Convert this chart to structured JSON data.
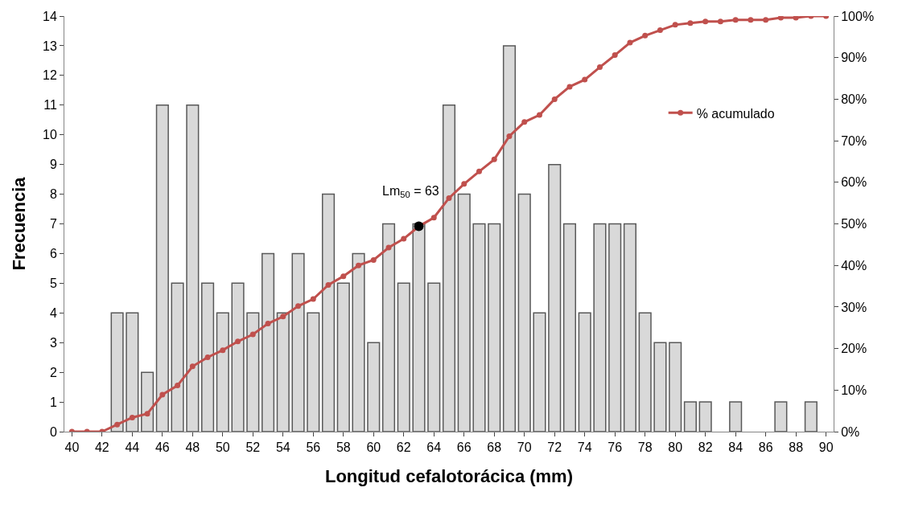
{
  "chart_data": {
    "type": "bar",
    "xlabel": "Longitud cefalotorácica (mm)",
    "ylabel": "Frecuencia",
    "x": [
      40,
      41,
      42,
      43,
      44,
      45,
      46,
      47,
      48,
      49,
      50,
      51,
      52,
      53,
      54,
      55,
      56,
      57,
      58,
      59,
      60,
      61,
      62,
      63,
      64,
      65,
      66,
      67,
      68,
      69,
      70,
      71,
      72,
      73,
      74,
      75,
      76,
      77,
      78,
      79,
      80,
      81,
      82,
      83,
      84,
      85,
      86,
      87,
      88,
      89,
      90
    ],
    "xlim": [
      39.5,
      90.5
    ],
    "xticks": [
      40,
      42,
      44,
      46,
      48,
      50,
      52,
      54,
      56,
      58,
      60,
      62,
      64,
      66,
      68,
      70,
      72,
      74,
      76,
      78,
      80,
      82,
      84,
      86,
      88,
      90
    ],
    "series": [
      {
        "color": "#d9d9d9",
        "values": [
          0,
          0,
          0,
          4,
          4,
          2,
          11,
          5,
          11,
          5,
          4,
          5,
          4,
          6,
          4,
          6,
          4,
          8,
          5,
          6,
          3,
          7,
          5,
          7,
          5,
          11,
          8,
          7,
          7,
          13,
          8,
          4,
          9,
          7,
          4,
          7,
          7,
          7,
          4,
          3,
          3,
          1,
          1,
          0,
          1,
          0,
          0,
          1,
          0,
          1,
          0
        ]
      },
      {
        "type": "line",
        "name": "% acumulado",
        "axis": "y2",
        "color": "#c0504d",
        "values": [
          0,
          0,
          0,
          1.7,
          3.4,
          4.3,
          8.9,
          11.1,
          15.7,
          17.9,
          19.6,
          21.7,
          23.4,
          26.0,
          27.7,
          30.2,
          31.9,
          35.3,
          37.4,
          40.0,
          41.3,
          44.3,
          46.4,
          49.4,
          51.5,
          56.2,
          59.6,
          62.6,
          65.5,
          71.1,
          74.5,
          76.2,
          80.0,
          83.0,
          84.7,
          87.7,
          90.6,
          93.6,
          95.3,
          96.6,
          97.9,
          98.3,
          98.7,
          98.7,
          99.1,
          99.1,
          99.1,
          99.6,
          99.6,
          100,
          100
        ]
      },
      {
        "type": "scatter",
        "axis": "y2",
        "color": "#000000",
        "x": [
          63
        ],
        "values": [
          49.4
        ]
      }
    ],
    "annotations": [
      "Lm$_{50}$ = 63"
    ],
    "ylim": [
      0,
      14
    ],
    "yticks": [
      0,
      1,
      2,
      3,
      4,
      5,
      6,
      7,
      8,
      9,
      10,
      11,
      12,
      13,
      14
    ],
    "y2lim": [
      0,
      100
    ],
    "y2ticks": [
      {
        "value": 0,
        "label": "0%"
      },
      {
        "value": 10,
        "label": "10%"
      },
      {
        "value": 20,
        "label": "20%"
      },
      {
        "value": 30,
        "label": "30%"
      },
      {
        "value": 40,
        "label": "40%"
      },
      {
        "value": 50,
        "label": "50%"
      },
      {
        "value": 60,
        "label": "60%"
      },
      {
        "value": 70,
        "label": "70%"
      },
      {
        "value": 80,
        "label": "80%"
      },
      {
        "value": 90,
        "label": "90%"
      },
      {
        "value": 100,
        "label": "100%"
      }
    ],
    "legend": "top right",
    "marker": "circle"
  }
}
